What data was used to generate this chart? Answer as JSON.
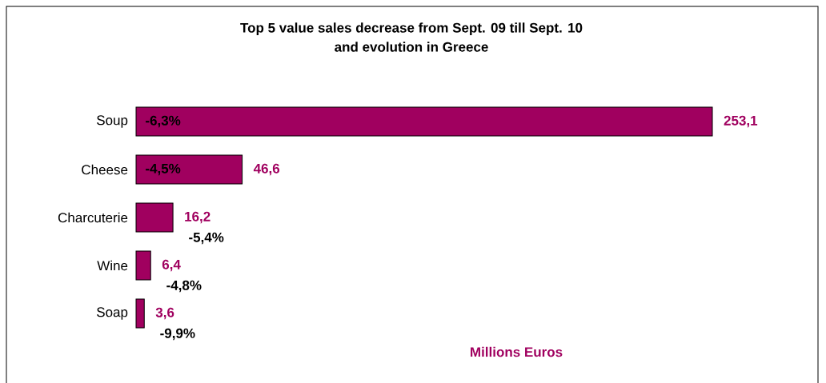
{
  "chart_data": {
    "type": "bar",
    "orientation": "horizontal",
    "title": "Top 5 value sales decrease from Sept. 09 till Sept. 10\nand evolution in Greece",
    "xlabel": "Millions Euros",
    "categories": [
      "Soup",
      "Cheese",
      "Charcuterie",
      "Wine",
      "Soap"
    ],
    "values": [
      253.1,
      46.6,
      16.2,
      6.4,
      3.6
    ],
    "value_labels": [
      "253,1",
      "46,6",
      "16,2",
      "6,4",
      "3,6"
    ],
    "color": "#a0005f",
    "annotations": [
      "-6,3%",
      "-4,5%",
      "-5,4%",
      "-4,8%",
      "-9,9%"
    ]
  }
}
